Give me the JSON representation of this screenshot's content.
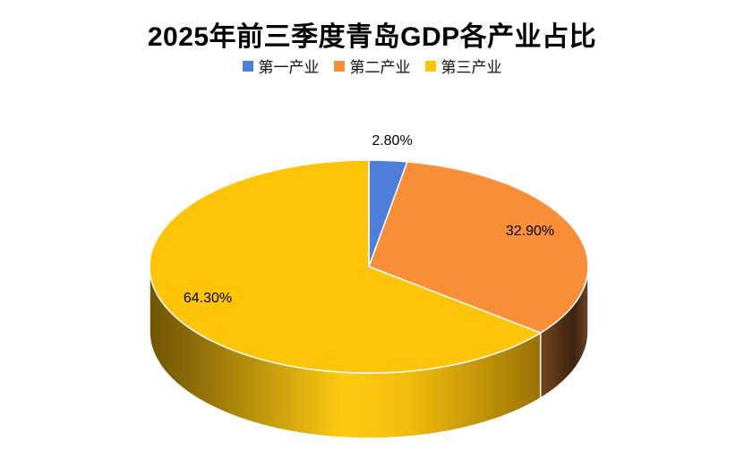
{
  "chart_data": {
    "type": "pie",
    "effect": "3d",
    "title": "2025年前三季度青岛GDP各产业占比",
    "categories": [
      "第一产业",
      "第二产业",
      "第三产业"
    ],
    "values": [
      2.8,
      32.9,
      64.3
    ],
    "data_labels": [
      "2.80%",
      "32.90%",
      "64.30%"
    ],
    "unit": "%",
    "colors": [
      "#4e7ed8",
      "#f98e38",
      "#fdc408"
    ],
    "side_gradients": [
      null,
      [
        [
          0,
          "#74451c"
        ],
        [
          0.7,
          "#3c230f"
        ],
        [
          1,
          "#6b4526"
        ]
      ],
      [
        [
          0,
          "#6f5404"
        ],
        [
          0.12,
          "#8f6e06"
        ],
        [
          0.5,
          "#ffcb11"
        ],
        [
          0.66,
          "#f2bd0c"
        ],
        [
          1,
          "#9a7206"
        ]
      ]
    ],
    "slice_border_color": "#ffffff",
    "start_angle": "12-oclock",
    "direction": "clockwise",
    "legend_position": "top",
    "background": "#ffffff",
    "text_color": "#000000"
  }
}
